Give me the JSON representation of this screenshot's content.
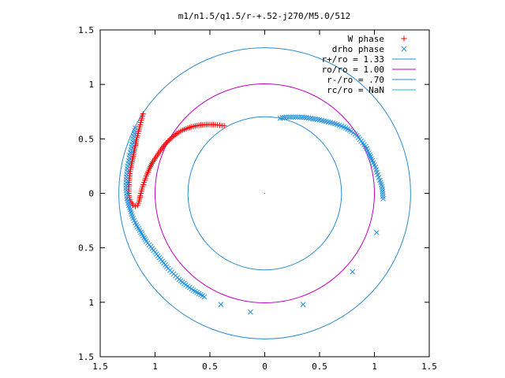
{
  "chart_data": {
    "type": "scatter",
    "title": "m1/n1.5/q1.5/r-+.52-j270/M5.0/512",
    "xlabel": "",
    "ylabel": "",
    "xlim": [
      -1.5,
      1.5
    ],
    "ylim": [
      -1.5,
      1.5
    ],
    "xticks": [
      {
        "value": -1.5,
        "label": "1.5"
      },
      {
        "value": -1.0,
        "label": "1"
      },
      {
        "value": -0.5,
        "label": "0.5"
      },
      {
        "value": 0.0,
        "label": "0"
      },
      {
        "value": 0.5,
        "label": "0.5"
      },
      {
        "value": 1.0,
        "label": "1"
      },
      {
        "value": 1.5,
        "label": "1.5"
      }
    ],
    "yticks": [
      {
        "value": 1.5,
        "label": "1.5"
      },
      {
        "value": 1.0,
        "label": "1"
      },
      {
        "value": 0.5,
        "label": "0.5"
      },
      {
        "value": 0.0,
        "label": "0"
      },
      {
        "value": -0.5,
        "label": "0.5"
      },
      {
        "value": -1.0,
        "label": "1"
      },
      {
        "value": -1.5,
        "label": "1.5"
      }
    ],
    "grid": false,
    "legend_position": "top-right",
    "series": [
      {
        "name": "W phase",
        "marker": "plus",
        "color": "#ff0000",
        "points": [
          [
            -1.11,
            0.73
          ],
          [
            -1.12,
            0.69
          ],
          [
            -1.13,
            0.65
          ],
          [
            -1.14,
            0.61
          ],
          [
            -1.15,
            0.57
          ],
          [
            -1.16,
            0.53
          ],
          [
            -1.17,
            0.49
          ],
          [
            -1.18,
            0.44
          ],
          [
            -1.19,
            0.39
          ],
          [
            -1.2,
            0.34
          ],
          [
            -1.21,
            0.29
          ],
          [
            -1.22,
            0.24
          ],
          [
            -1.23,
            0.18
          ],
          [
            -1.235,
            0.12
          ],
          [
            -1.24,
            0.06
          ],
          [
            -1.24,
            0.0
          ],
          [
            -1.235,
            -0.04
          ],
          [
            -1.22,
            -0.08
          ],
          [
            -1.2,
            -0.11
          ],
          [
            -1.18,
            -0.12
          ],
          [
            -1.16,
            -0.11
          ],
          [
            -1.145,
            -0.07
          ],
          [
            -1.135,
            -0.02
          ],
          [
            -1.12,
            0.04
          ],
          [
            -1.1,
            0.1
          ],
          [
            -1.08,
            0.16
          ],
          [
            -1.05,
            0.23
          ],
          [
            -1.02,
            0.29
          ],
          [
            -0.98,
            0.35
          ],
          [
            -0.94,
            0.41
          ],
          [
            -0.9,
            0.46
          ],
          [
            -0.85,
            0.51
          ],
          [
            -0.8,
            0.55
          ],
          [
            -0.75,
            0.58
          ],
          [
            -0.7,
            0.6
          ],
          [
            -0.65,
            0.615
          ],
          [
            -0.6,
            0.625
          ],
          [
            -0.55,
            0.63
          ],
          [
            -0.5,
            0.632
          ],
          [
            -0.45,
            0.63
          ],
          [
            -0.41,
            0.625
          ],
          [
            -0.37,
            0.62
          ]
        ]
      },
      {
        "name": "drho phase",
        "marker": "cross",
        "color": "#1f8fe0",
        "points": [
          [
            0.14,
            0.69
          ],
          [
            0.2,
            0.7
          ],
          [
            0.26,
            0.7
          ],
          [
            0.32,
            0.7
          ],
          [
            0.38,
            0.695
          ],
          [
            0.44,
            0.685
          ],
          [
            0.5,
            0.675
          ],
          [
            0.56,
            0.66
          ],
          [
            0.62,
            0.645
          ],
          [
            0.68,
            0.625
          ],
          [
            0.74,
            0.6
          ],
          [
            0.79,
            0.57
          ],
          [
            0.84,
            0.53
          ],
          [
            0.88,
            0.48
          ],
          [
            0.92,
            0.43
          ],
          [
            0.95,
            0.37
          ],
          [
            0.98,
            0.3
          ],
          [
            1.01,
            0.24
          ],
          [
            1.03,
            0.17
          ],
          [
            1.05,
            0.12
          ],
          [
            1.07,
            0.06
          ],
          [
            1.08,
            -0.05
          ],
          [
            1.02,
            -0.36
          ],
          [
            0.8,
            -0.72
          ],
          [
            0.35,
            -1.02
          ],
          [
            -0.13,
            -1.09
          ],
          [
            -0.4,
            -1.02
          ],
          [
            -0.55,
            -0.95
          ],
          [
            -0.65,
            -0.89
          ],
          [
            -0.72,
            -0.84
          ],
          [
            -0.78,
            -0.79
          ],
          [
            -0.83,
            -0.74
          ],
          [
            -0.88,
            -0.69
          ],
          [
            -0.92,
            -0.64
          ],
          [
            -0.96,
            -0.59
          ],
          [
            -1.0,
            -0.54
          ],
          [
            -1.04,
            -0.49
          ],
          [
            -1.08,
            -0.44
          ],
          [
            -1.11,
            -0.39
          ],
          [
            -1.14,
            -0.34
          ],
          [
            -1.17,
            -0.29
          ],
          [
            -1.2,
            -0.23
          ],
          [
            -1.22,
            -0.17
          ],
          [
            -1.24,
            -0.11
          ],
          [
            -1.255,
            -0.05
          ],
          [
            -1.26,
            0.0
          ],
          [
            -1.265,
            0.05
          ],
          [
            -1.265,
            0.1
          ],
          [
            -1.26,
            0.15
          ],
          [
            -1.255,
            0.2
          ],
          [
            -1.25,
            0.25
          ],
          [
            -1.24,
            0.3
          ],
          [
            -1.23,
            0.35
          ],
          [
            -1.22,
            0.4
          ],
          [
            -1.21,
            0.45
          ],
          [
            -1.2,
            0.5
          ],
          [
            -1.19,
            0.55
          ],
          [
            -1.18,
            0.6
          ]
        ]
      },
      {
        "name": "r+/ro = 1.33",
        "type": "circle",
        "radius": 1.33,
        "color": "#2a8ccf"
      },
      {
        "name": "ro/ro = 1.00",
        "type": "circle",
        "radius": 1.0,
        "color": "#c000c0"
      },
      {
        "name": "r-/ro = .70",
        "type": "circle",
        "radius": 0.7,
        "color": "#2a8ccf"
      },
      {
        "name": "rc/ro = NaN",
        "type": "circle",
        "radius": null,
        "color": "#22bbe0"
      }
    ]
  }
}
